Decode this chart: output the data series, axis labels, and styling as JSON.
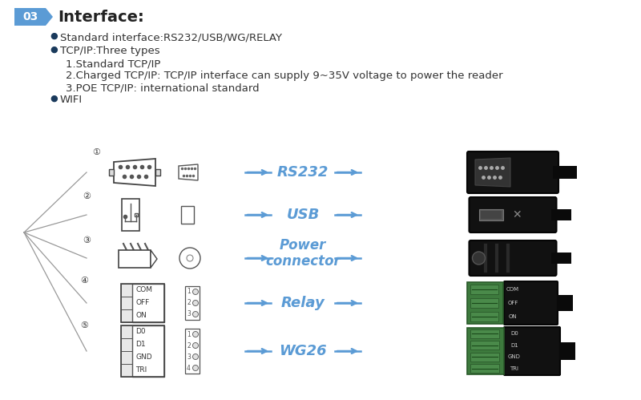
{
  "bg_color": "#ffffff",
  "title_box_color": "#5b9bd5",
  "title_box_text": "03",
  "title_text": "Interface:",
  "title_fontsize": 14,
  "bullet_color": "#1a3a5c",
  "arrow_color": "#5b9bd5",
  "text_color": "#333333",
  "dark_connector_color": "#1a1a1a",
  "green_color": "#3d8b3d",
  "bullet_items": [
    "Standard interface:RS232/USB/WG/RELAY",
    "TCP/IP:Three types"
  ],
  "sub_items": [
    "1.Standard TCP/IP",
    "2.Charged TCP/IP: TCP/IP interface can supply 9~35V voltage to power the reader",
    "3.POE TCP/IP: international standard"
  ],
  "bullet_wifi": "WIFI",
  "interface_labels": [
    "RS232",
    "USB",
    "Power\nconnector",
    "Relay",
    "WG26"
  ],
  "row_centers_y": [
    215,
    268,
    322,
    378,
    438
  ],
  "figsize": [
    8.0,
    4.99
  ],
  "dpi": 100
}
